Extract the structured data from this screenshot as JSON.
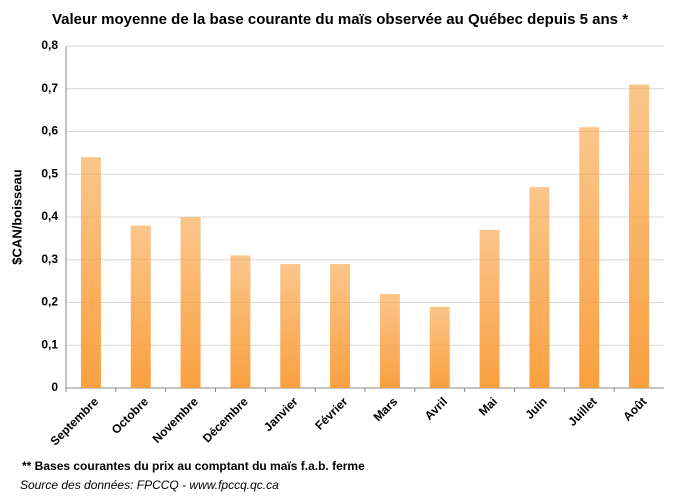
{
  "chart_data": {
    "type": "bar",
    "title": "Valeur moyenne de la base courante du maïs observée au Québec depuis 5 ans *",
    "y_label": "$CAN/boisseau",
    "categories": [
      "Septembre",
      "Octobre",
      "Novembre",
      "Décembre",
      "Janvier",
      "Février",
      "Mars",
      "Avril",
      "Mai",
      "Juin",
      "Juillet",
      "Août"
    ],
    "values": [
      0.54,
      0.38,
      0.4,
      0.31,
      0.29,
      0.29,
      0.22,
      0.19,
      0.37,
      0.47,
      0.61,
      0.71
    ],
    "color": "#f9a03f",
    "ylim": [
      0,
      0.8
    ],
    "yticks": [
      0,
      {
        "value": 0.1,
        "label": "0,1"
      },
      {
        "value": 0.2,
        "label": "0,2"
      },
      {
        "value": 0.3,
        "label": "0,3"
      },
      {
        "value": 0.4,
        "label": "0,4"
      },
      {
        "value": 0.5,
        "label": "0,5"
      },
      {
        "value": 0.6,
        "label": "0,6"
      },
      {
        "value": 0.7,
        "label": "0,7"
      },
      {
        "value": 0.8,
        "label": "0,8"
      }
    ],
    "grid": true,
    "notes": [
      "** Bases courantes du prix au comptant du maïs f.a.b. ferme",
      "Source des données: FPCCQ - www.fpccq.qc.ca"
    ]
  }
}
